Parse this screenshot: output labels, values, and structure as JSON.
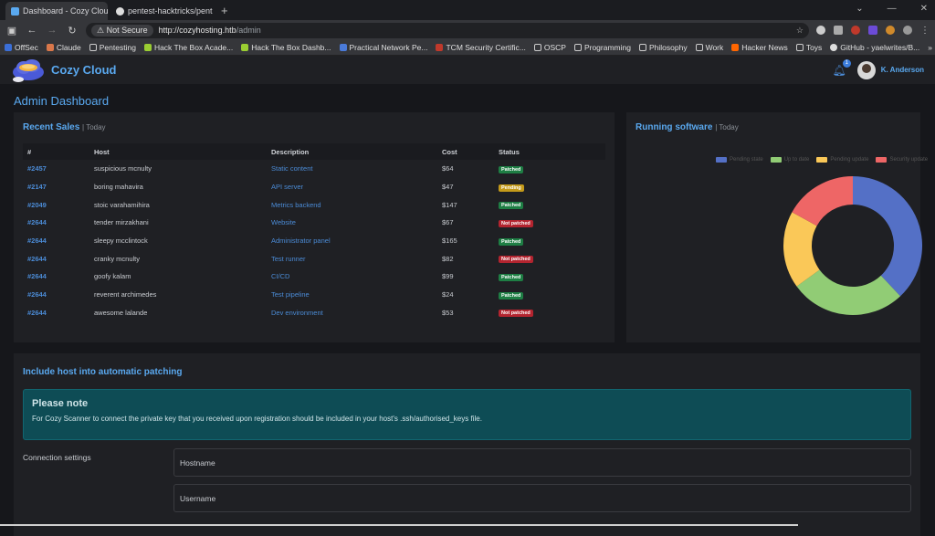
{
  "browser": {
    "tabs": [
      {
        "title": "Dashboard - Cozy Clou",
        "active": true
      },
      {
        "title": "pentest-hacktricks/pent",
        "active": false
      }
    ],
    "new_tab": "+",
    "not_secure": "Not Secure",
    "url_host": "http://cozyhosting.htb",
    "url_path": "/admin",
    "bookmarks": [
      "OffSec",
      "Claude",
      "Pentesting",
      "Hack The Box Acade...",
      "Hack The Box Dashb...",
      "Practical Network Pe...",
      "TCM Security Certific...",
      "OSCP",
      "Programming",
      "Philosophy",
      "Work",
      "Hacker News",
      "Toys",
      "GitHub - yaelwrites/B..."
    ]
  },
  "header": {
    "brand": "Cozy Cloud",
    "notification_count": "1",
    "user": "K. Anderson"
  },
  "page_title": "Admin Dashboard",
  "sales": {
    "title": "Recent Sales",
    "period": "| Today",
    "columns": [
      "#",
      "Host",
      "Description",
      "Cost",
      "Status"
    ],
    "rows": [
      {
        "id": "#2457",
        "host": "suspicious mcnulty",
        "desc": "Static content",
        "cost": "$64",
        "status": "Patched"
      },
      {
        "id": "#2147",
        "host": "boring mahavira",
        "desc": "API server",
        "cost": "$47",
        "status": "Pending"
      },
      {
        "id": "#2049",
        "host": "stoic varahamihira",
        "desc": "Metrics backend",
        "cost": "$147",
        "status": "Patched"
      },
      {
        "id": "#2644",
        "host": "tender mirzakhani",
        "desc": "Website",
        "cost": "$67",
        "status": "Not patched"
      },
      {
        "id": "#2644",
        "host": "sleepy mcclintock",
        "desc": "Administrator panel",
        "cost": "$165",
        "status": "Patched"
      },
      {
        "id": "#2644",
        "host": "cranky mcnulty",
        "desc": "Test runner",
        "cost": "$82",
        "status": "Not patched"
      },
      {
        "id": "#2644",
        "host": "goofy kalam",
        "desc": "CI/CD",
        "cost": "$99",
        "status": "Patched"
      },
      {
        "id": "#2644",
        "host": "reverent archimedes",
        "desc": "Test pipeline",
        "cost": "$24",
        "status": "Patched"
      },
      {
        "id": "#2644",
        "host": "awesome lalande",
        "desc": "Dev environment",
        "cost": "$53",
        "status": "Not patched"
      }
    ]
  },
  "status_colors": {
    "Patched": "#1e7e44",
    "Pending": "#c49a1a",
    "Not patched": "#b3242f"
  },
  "software": {
    "title": "Running software",
    "period": "| Today"
  },
  "chart_data": {
    "type": "pie",
    "style": "doughnut",
    "title": "",
    "legend_position": "top",
    "series": [
      {
        "name": "Pending state",
        "value": 38,
        "color": "#5470c6"
      },
      {
        "name": "Up to date",
        "value": 27,
        "color": "#91cc75"
      },
      {
        "name": "Pending update",
        "value": 18,
        "color": "#fac858"
      },
      {
        "name": "Security update",
        "value": 17,
        "color": "#ee6666"
      }
    ]
  },
  "patching": {
    "title": "Include host into automatic patching",
    "note_title": "Please note",
    "note_text": "For Cozy Scanner to connect the private key that you received upon registration should be included in your host's .ssh/authorised_keys file.",
    "section_label": "Connection settings",
    "hostname_placeholder": "Hostname",
    "username_placeholder": "Username"
  }
}
